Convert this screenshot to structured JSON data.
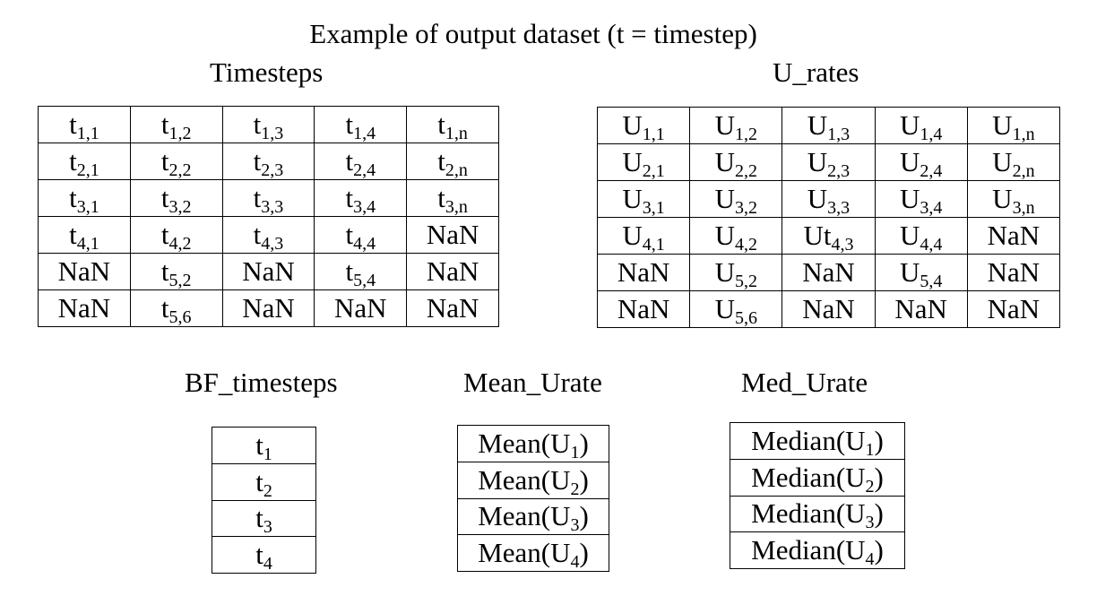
{
  "title": "Example of output dataset (t = timestep)",
  "timesteps": {
    "title": "Timesteps",
    "rows": [
      [
        {
          "base": "t",
          "sub": "1,1"
        },
        {
          "base": "t",
          "sub": "1,2"
        },
        {
          "base": "t",
          "sub": "1,3"
        },
        {
          "base": "t",
          "sub": "1,4"
        },
        {
          "base": "t",
          "sub": "1,n"
        }
      ],
      [
        {
          "base": "t",
          "sub": "2,1"
        },
        {
          "base": "t",
          "sub": "2,2"
        },
        {
          "base": "t",
          "sub": "2,3"
        },
        {
          "base": "t",
          "sub": "2,4"
        },
        {
          "base": "t",
          "sub": "2,n"
        }
      ],
      [
        {
          "base": "t",
          "sub": "3,1"
        },
        {
          "base": "t",
          "sub": "3,2"
        },
        {
          "base": "t",
          "sub": "3,3"
        },
        {
          "base": "t",
          "sub": "3,4"
        },
        {
          "base": "t",
          "sub": "3,n"
        }
      ],
      [
        {
          "base": "t",
          "sub": "4,1"
        },
        {
          "base": "t",
          "sub": "4,2"
        },
        {
          "base": "t",
          "sub": "4,3"
        },
        {
          "base": "t",
          "sub": "4,4"
        },
        {
          "base": "NaN",
          "sub": ""
        }
      ],
      [
        {
          "base": "NaN",
          "sub": ""
        },
        {
          "base": "t",
          "sub": "5,2"
        },
        {
          "base": "NaN",
          "sub": ""
        },
        {
          "base": "t",
          "sub": "5,4"
        },
        {
          "base": "NaN",
          "sub": ""
        }
      ],
      [
        {
          "base": "NaN",
          "sub": ""
        },
        {
          "base": "t",
          "sub": "5,6"
        },
        {
          "base": "NaN",
          "sub": ""
        },
        {
          "base": "NaN",
          "sub": ""
        },
        {
          "base": "NaN",
          "sub": ""
        }
      ]
    ]
  },
  "u_rates": {
    "title": "U_rates",
    "rows": [
      [
        {
          "base": "U",
          "sub": "1,1"
        },
        {
          "base": "U",
          "sub": "1,2"
        },
        {
          "base": "U",
          "sub": "1,3"
        },
        {
          "base": "U",
          "sub": "1,4"
        },
        {
          "base": "U",
          "sub": "1,n"
        }
      ],
      [
        {
          "base": "U",
          "sub": "2,1"
        },
        {
          "base": "U",
          "sub": "2,2"
        },
        {
          "base": "U",
          "sub": "2,3"
        },
        {
          "base": "U",
          "sub": "2,4"
        },
        {
          "base": "U",
          "sub": "2,n"
        }
      ],
      [
        {
          "base": "U",
          "sub": "3,1"
        },
        {
          "base": "U",
          "sub": "3,2"
        },
        {
          "base": "U",
          "sub": "3,3"
        },
        {
          "base": "U",
          "sub": "3,4"
        },
        {
          "base": "U",
          "sub": "3,n"
        }
      ],
      [
        {
          "base": "U",
          "sub": "4,1"
        },
        {
          "base": "U",
          "sub": "4,2"
        },
        {
          "base": "Ut",
          "sub": "4,3"
        },
        {
          "base": "U",
          "sub": "4,4"
        },
        {
          "base": "NaN",
          "sub": ""
        }
      ],
      [
        {
          "base": "NaN",
          "sub": ""
        },
        {
          "base": "U",
          "sub": "5,2"
        },
        {
          "base": "NaN",
          "sub": ""
        },
        {
          "base": "U",
          "sub": "5,4"
        },
        {
          "base": "NaN",
          "sub": ""
        }
      ],
      [
        {
          "base": "NaN",
          "sub": ""
        },
        {
          "base": "U",
          "sub": "5,6"
        },
        {
          "base": "NaN",
          "sub": ""
        },
        {
          "base": "NaN",
          "sub": ""
        },
        {
          "base": "NaN",
          "sub": ""
        }
      ]
    ]
  },
  "bf_timesteps": {
    "title": "BF_timesteps",
    "rows": [
      [
        {
          "base": "t",
          "sub": "1",
          "post": ""
        }
      ],
      [
        {
          "base": "t",
          "sub": "2",
          "post": ""
        }
      ],
      [
        {
          "base": "t",
          "sub": "3",
          "post": ""
        }
      ],
      [
        {
          "base": "t",
          "sub": "4",
          "post": ""
        }
      ]
    ]
  },
  "mean_urate": {
    "title": "Mean_Urate",
    "rows": [
      [
        {
          "base": "Mean(U",
          "sub": "1",
          "post": ")"
        }
      ],
      [
        {
          "base": "Mean(U",
          "sub": "2",
          "post": ")"
        }
      ],
      [
        {
          "base": "Mean(U",
          "sub": "3",
          "post": ")"
        }
      ],
      [
        {
          "base": "Mean(U",
          "sub": "4",
          "post": ")"
        }
      ]
    ]
  },
  "med_urate": {
    "title": "Med_Urate",
    "rows": [
      [
        {
          "base": "Median(U",
          "sub": "1",
          "post": ")"
        }
      ],
      [
        {
          "base": "Median(U",
          "sub": "2",
          "post": ")"
        }
      ],
      [
        {
          "base": "Median(U",
          "sub": "3",
          "post": ")"
        }
      ],
      [
        {
          "base": "Median(U",
          "sub": "4",
          "post": ")"
        }
      ]
    ]
  }
}
